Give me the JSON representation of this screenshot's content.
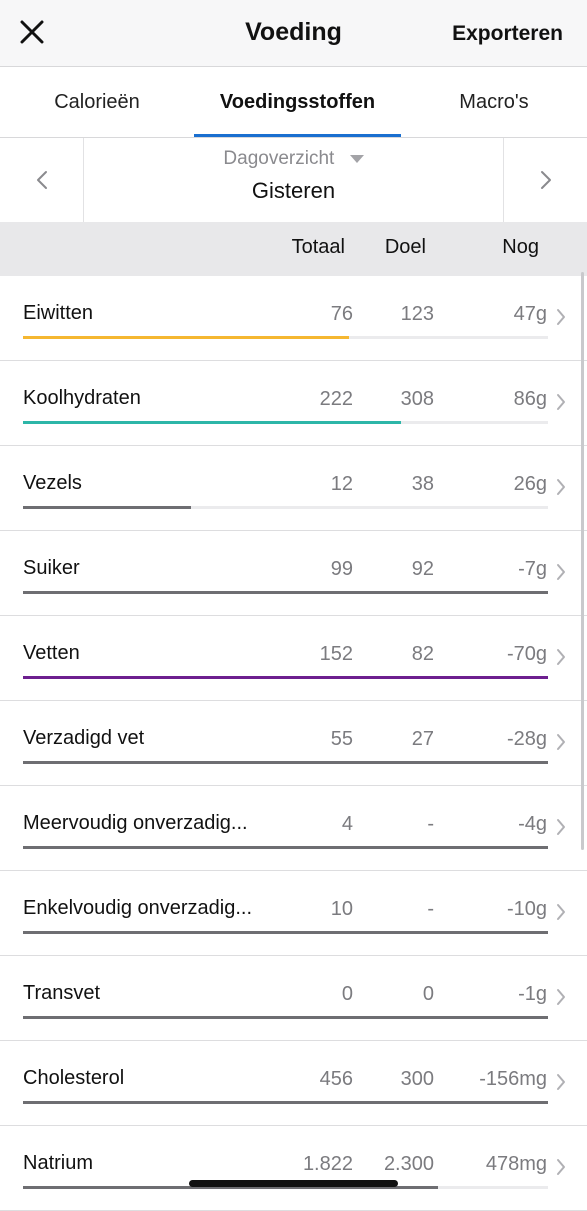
{
  "nav": {
    "title": "Voeding",
    "export_label": "Exporteren",
    "close_icon": "close-icon"
  },
  "tabs": [
    {
      "label": "Calorieën",
      "active": false
    },
    {
      "label": "Voedingsstoffen",
      "active": true
    },
    {
      "label": "Macro's",
      "active": false
    }
  ],
  "date": {
    "mode": "Dagoverzicht",
    "value": "Gisteren"
  },
  "columns": {
    "total": "Totaal",
    "goal": "Doel",
    "left": "Nog"
  },
  "colors": {
    "accent": "#1a6fd0"
  },
  "nutrients": [
    {
      "name": "Eiwitten",
      "total": "76",
      "goal": "123",
      "left": "47g",
      "progress": 0.62,
      "color": "#f5b731"
    },
    {
      "name": "Koolhydraten",
      "total": "222",
      "goal": "308",
      "left": "86g",
      "progress": 0.72,
      "color": "#2db6a8"
    },
    {
      "name": "Vezels",
      "total": "12",
      "goal": "38",
      "left": "26g",
      "progress": 0.32,
      "color": "#6e6e72"
    },
    {
      "name": "Suiker",
      "total": "99",
      "goal": "92",
      "left": "-7g",
      "progress": 1.0,
      "color": "#6e6e72"
    },
    {
      "name": "Vetten",
      "total": "152",
      "goal": "82",
      "left": "-70g",
      "progress": 1.0,
      "color": "#6d1f8f"
    },
    {
      "name": "Verzadigd vet",
      "total": "55",
      "goal": "27",
      "left": "-28g",
      "progress": 1.0,
      "color": "#6e6e72"
    },
    {
      "name": "Meervoudig onverzadig...",
      "total": "4",
      "goal": "-",
      "left": "-4g",
      "progress": 1.0,
      "color": "#6e6e72"
    },
    {
      "name": "Enkelvoudig onverzadig...",
      "total": "10",
      "goal": "-",
      "left": "-10g",
      "progress": 1.0,
      "color": "#6e6e72"
    },
    {
      "name": "Transvet",
      "total": "0",
      "goal": "0",
      "left": "-1g",
      "progress": 1.0,
      "color": "#6e6e72"
    },
    {
      "name": "Cholesterol",
      "total": "456",
      "goal": "300",
      "left": "-156mg",
      "progress": 1.0,
      "color": "#6e6e72"
    },
    {
      "name": "Natrium",
      "total": "1.822",
      "goal": "2.300",
      "left": "478mg",
      "progress": 0.79,
      "color": "#6e6e72"
    }
  ]
}
